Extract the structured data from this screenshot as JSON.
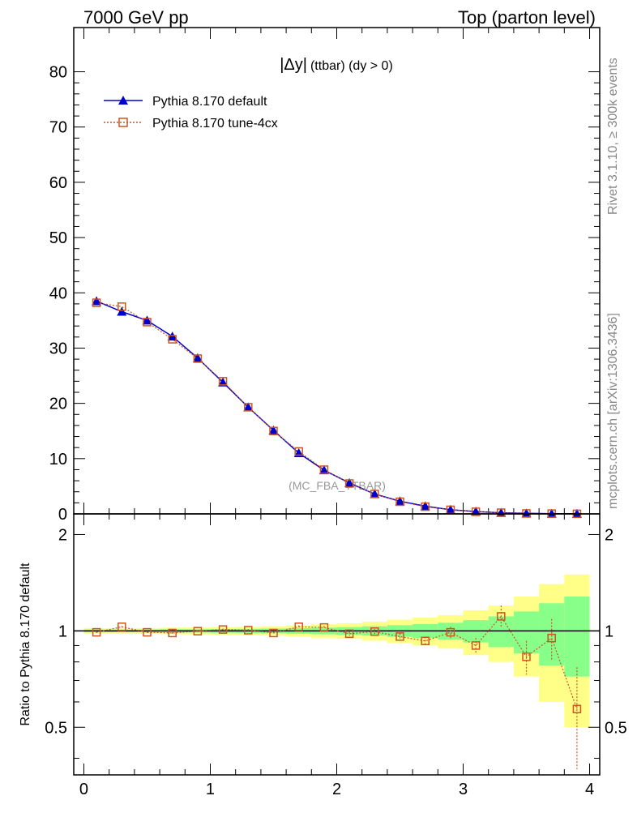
{
  "header": {
    "left_label": "7000 GeV pp",
    "right_label": "Top (parton level)"
  },
  "side_text": {
    "rivet": "Rivet 3.1.10, ≥ 300k events",
    "source": "mcplots.cern.ch [arXiv:1306.3436]"
  },
  "main_plot": {
    "title_symbol": "|Δy|",
    "title_rest": "(ttbar) (dy > 0)",
    "watermark": "(MC_FBA_TTBAR)",
    "ylim": [
      0,
      88
    ],
    "yticks": [
      0,
      10,
      20,
      30,
      40,
      50,
      60,
      70,
      80
    ],
    "ytick_labels": [
      "0",
      "10",
      "20",
      "30",
      "40",
      "50",
      "60",
      "70",
      "80"
    ]
  },
  "ratio_plot": {
    "ylabel": "Ratio to Pythia 8.170 default",
    "ytick_labels": [
      "0.5",
      "1",
      "2"
    ],
    "ytick_values": [
      0.5,
      1,
      2
    ]
  },
  "x_axis": {
    "xlim": [
      -0.08,
      4.08
    ],
    "xticks": [
      0,
      1,
      2,
      3,
      4
    ],
    "xtick_labels": [
      "0",
      "1",
      "2",
      "3",
      "4"
    ]
  },
  "legend": {
    "placement": "top-left",
    "entries": [
      {
        "label": "Pythia 8.170 default",
        "color": "#0000cc",
        "marker": "triangle",
        "style": "solid"
      },
      {
        "label": "Pythia 8.170 tune-4cx",
        "color": "#cc5522",
        "marker": "open-square",
        "style": "dotted"
      }
    ]
  },
  "chart_data": {
    "type": "line",
    "x": [
      0.1,
      0.3,
      0.5,
      0.7,
      0.9,
      1.1,
      1.3,
      1.5,
      1.7,
      1.9,
      2.1,
      2.3,
      2.5,
      2.7,
      2.9,
      3.1,
      3.3,
      3.5,
      3.7,
      3.9
    ],
    "x_edges": [
      0,
      0.2,
      0.4,
      0.6,
      0.8,
      1.0,
      1.2,
      1.4,
      1.6,
      1.8,
      2.0,
      2.2,
      2.4,
      2.6,
      2.8,
      3.0,
      3.2,
      3.4,
      3.6,
      3.8,
      4.0
    ],
    "series": [
      {
        "name": "Pythia 8.170 default",
        "color": "#0000cc",
        "values": [
          38.5,
          36.6,
          35.0,
          32.1,
          28.2,
          23.8,
          19.3,
          15.1,
          11.0,
          7.9,
          5.6,
          3.6,
          2.3,
          1.4,
          0.75,
          0.42,
          0.2,
          0.1,
          0.05,
          0.03
        ]
      },
      {
        "name": "Pythia 8.170 tune-4cx",
        "color": "#cc5522",
        "values": [
          38.2,
          37.5,
          34.7,
          31.6,
          28.1,
          24.0,
          19.3,
          15.0,
          11.3,
          8.0,
          5.5,
          3.6,
          2.2,
          1.3,
          0.74,
          0.38,
          0.22,
          0.08,
          0.05,
          0.02
        ]
      }
    ],
    "ratio": {
      "values": [
        0.99,
        1.03,
        0.99,
        0.985,
        0.998,
        1.01,
        1.005,
        0.985,
        1.03,
        1.025,
        0.98,
        0.995,
        0.96,
        0.93,
        0.99,
        0.9,
        1.11,
        0.83,
        0.95,
        0.57
      ],
      "band_inner": [
        0.01,
        0.01,
        0.01,
        0.012,
        0.012,
        0.014,
        0.015,
        0.017,
        0.02,
        0.024,
        0.028,
        0.034,
        0.042,
        0.05,
        0.06,
        0.08,
        0.11,
        0.15,
        0.22,
        0.28
      ],
      "band_outer": [
        0.02,
        0.02,
        0.02,
        0.024,
        0.025,
        0.028,
        0.03,
        0.034,
        0.04,
        0.048,
        0.056,
        0.068,
        0.084,
        0.1,
        0.12,
        0.16,
        0.2,
        0.28,
        0.4,
        0.5
      ],
      "err": [
        0.005,
        0.005,
        0.005,
        0.005,
        0.006,
        0.007,
        0.008,
        0.009,
        0.01,
        0.012,
        0.015,
        0.018,
        0.022,
        0.03,
        0.04,
        0.05,
        0.09,
        0.1,
        0.14,
        0.2
      ]
    }
  }
}
